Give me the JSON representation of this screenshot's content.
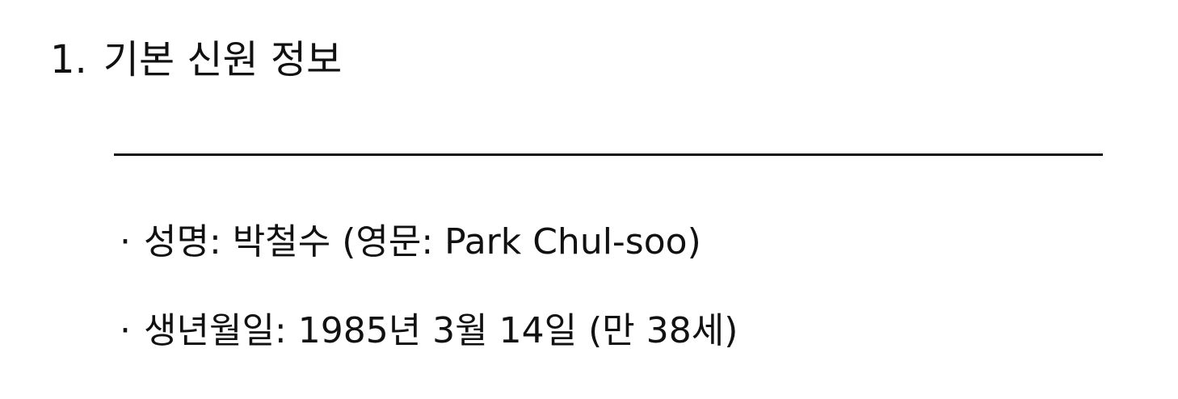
{
  "section": {
    "number": "1.",
    "title": "기본 신원 정보"
  },
  "items": [
    {
      "bullet": "·",
      "text": "성명: 박철수 (영문: Park Chul-soo)"
    },
    {
      "bullet": "·",
      "text": "생년월일: 1985년 3월 14일 (만 38세)"
    }
  ]
}
